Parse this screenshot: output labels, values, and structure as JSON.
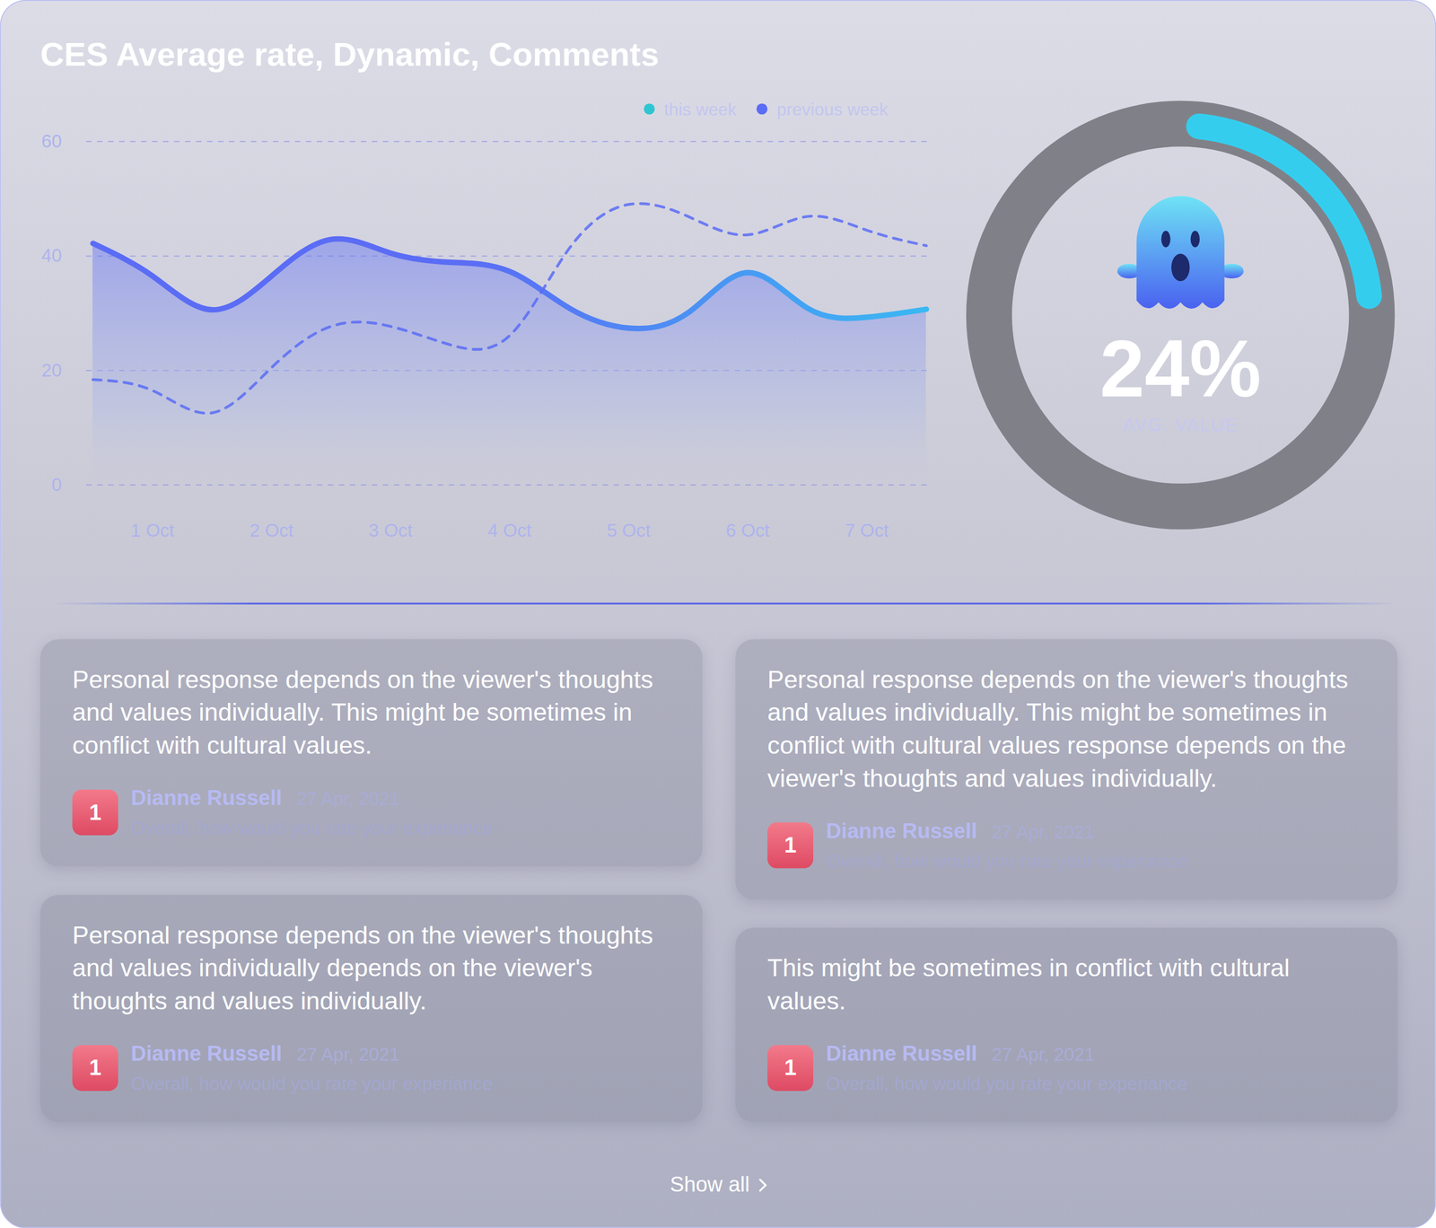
{
  "title": "CES Average rate, Dynamic, Comments",
  "chart_data": [
    {
      "type": "line",
      "categories": [
        null,
        "1 Oct",
        null,
        "2 Oct",
        null,
        "3 Oct",
        null,
        "4 Oct",
        null,
        "5 Oct",
        null,
        "6 Oct",
        null,
        "7 Oct",
        null
      ],
      "series": [
        {
          "name": "this week",
          "color": "#2fc6d2",
          "line_style": "solid",
          "values": [
            42.2,
            36.5,
            30.6,
            36.5,
            42.9,
            40.5,
            38.9,
            37.3,
            30.9,
            27.4,
            30.1,
            37.1,
            30.9,
            29.3,
            30.7
          ]
        },
        {
          "name": "previous week",
          "color": "#5b6cf5",
          "line_style": "dashed",
          "values": [
            18.4,
            16.5,
            12.6,
            20.5,
            27.7,
            27.7,
            24.5,
            26.1,
            41.3,
            49,
            46.9,
            43.7,
            46.9,
            44.5,
            41.8
          ]
        }
      ],
      "ylim": [
        0,
        60
      ],
      "yticks": [
        0,
        20,
        40,
        60
      ],
      "grid": true,
      "legend": "top"
    },
    {
      "type": "donut",
      "values": [
        24
      ],
      "value_labels": [
        "24%"
      ],
      "subtitle": "AVG. VALUE"
    }
  ],
  "comment_columns": [
    [
      {
        "text": "Personal response depends on the viewer's thoughts and values individually. This might be sometimes in conflict with cultural values.",
        "score": 1,
        "author": "Dianne Russell",
        "date": "27 Apr, 2021",
        "question": "Overall, how would you rate your experiance"
      },
      {
        "text": "Personal response depends on the viewer's thoughts and values individually depends on the viewer's thoughts and values individually.",
        "score": 1,
        "author": "Dianne Russell",
        "date": "27 Apr, 2021",
        "question": "Overall, how would you rate your experiance"
      }
    ],
    [
      {
        "text": "Personal response depends on the viewer's thoughts and values individually. This might be sometimes in conflict with cultural values response depends on the viewer's thoughts and values individually.",
        "score": 1,
        "author": "Dianne Russell",
        "date": "27 Apr, 2021",
        "question": "Overall, how would you rate your experiance"
      },
      {
        "text": "This might be sometimes in conflict with cultural values.",
        "score": 1,
        "author": "Dianne Russell",
        "date": "27 Apr, 2021",
        "question": "Overall, how would you rate your experiance"
      }
    ]
  ],
  "show_all": "Show all"
}
